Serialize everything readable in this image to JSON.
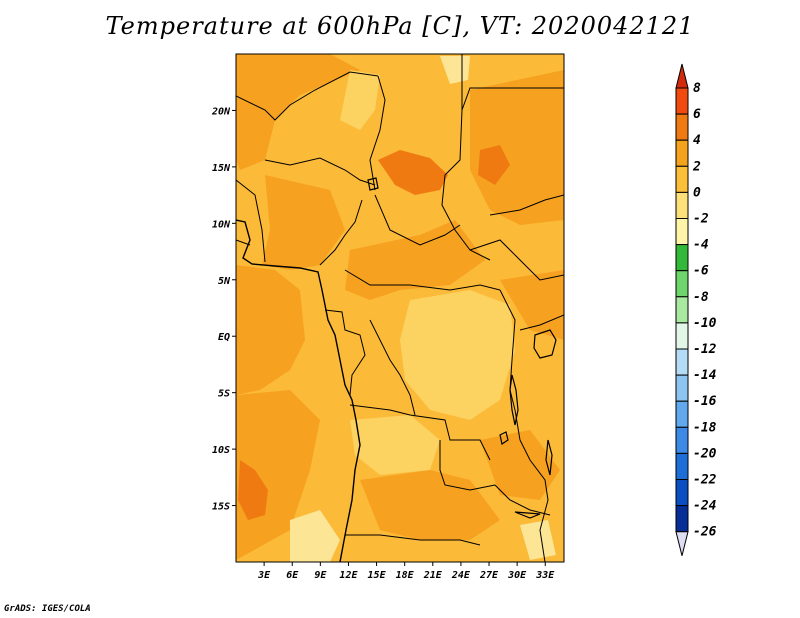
{
  "title": "Temperature at 600hPa [C], VT: 2020042121",
  "credit": "GrADS: IGES/COLA",
  "map": {
    "lon_range": [
      0,
      35
    ],
    "lat_range": [
      -20,
      25
    ],
    "lon_labels": [
      "3E",
      "6E",
      "9E",
      "12E",
      "15E",
      "18E",
      "21E",
      "24E",
      "27E",
      "30E",
      "33E"
    ],
    "lat_labels": [
      "20N",
      "15N",
      "10N",
      "5N",
      "EQ",
      "5S",
      "10S",
      "15S"
    ]
  },
  "colorbar": {
    "labels": [
      "8",
      "6",
      "4",
      "2",
      "0",
      "-2",
      "-4",
      "-6",
      "-8",
      "-10",
      "-12",
      "-14",
      "-16",
      "-18",
      "-20",
      "-22",
      "-24",
      "-26"
    ],
    "colors": [
      "#d42a0c",
      "#f04a0f",
      "#f07a12",
      "#f5a21c",
      "#fbbf3a",
      "#fde07a",
      "#fff4a8",
      "#34b83a",
      "#6fd46b",
      "#a8e8a0",
      "#e2f7e8",
      "#b4dcf7",
      "#8cc4f2",
      "#62a8ec",
      "#3c8ae6",
      "#1e6ed8",
      "#0a4ec2",
      "#062e96",
      "#051a66",
      "#dcdcf2"
    ]
  },
  "fill_colors": {
    "base": "#fbba38",
    "warm": "#f6a11f",
    "hot": "#f07a12",
    "cool": "#fcd261",
    "cooler": "#fde596"
  }
}
